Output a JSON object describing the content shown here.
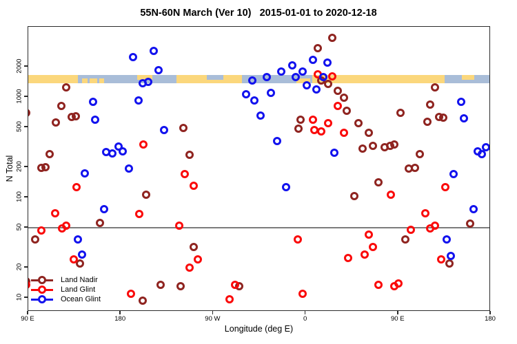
{
  "chart_data": {
    "type": "scatter",
    "title": "55N-60N March (Ver 10)   2015-01-01 to 2020-12-18",
    "xlabel": "Longitude (deg E)",
    "ylabel": "N Total",
    "x_axis": {
      "range_deg": [
        90,
        540
      ],
      "ticks": [
        {
          "deg": 90,
          "label": "90 E"
        },
        {
          "deg": 180,
          "label": "180"
        },
        {
          "deg": 270,
          "label": "90 W"
        },
        {
          "deg": 360,
          "label": "0"
        },
        {
          "deg": 450,
          "label": "90 E"
        },
        {
          "deg": 540,
          "label": "180"
        }
      ]
    },
    "y_axis": {
      "scale": "log10",
      "range": [
        7.3,
        5000
      ],
      "ticks": [
        2000,
        1000,
        500,
        200,
        100,
        50,
        20,
        10
      ]
    },
    "reference_line_n": 50,
    "surface_band": {
      "n_top": 1660,
      "n_bottom": 1365,
      "ocean_color": "#a9bdd8",
      "land_color": "#fbd77c",
      "land_segments": [
        {
          "from_deg": 90,
          "to_deg": 138,
          "part": "full"
        },
        {
          "from_deg": 142,
          "to_deg": 148,
          "part": "bottom"
        },
        {
          "from_deg": 150,
          "to_deg": 157,
          "part": "bottom"
        },
        {
          "from_deg": 159,
          "to_deg": 164,
          "part": "bottom"
        },
        {
          "from_deg": 196,
          "to_deg": 211,
          "part": "top"
        },
        {
          "from_deg": 234,
          "to_deg": 298,
          "part": "full"
        },
        {
          "from_deg": 351,
          "to_deg": 364,
          "part": "bottom"
        },
        {
          "from_deg": 366,
          "to_deg": 495,
          "part": "full"
        },
        {
          "from_deg": 512,
          "to_deg": 524,
          "part": "top"
        }
      ],
      "ocean_notches": [
        {
          "from_deg": 264,
          "to_deg": 280,
          "part": "top"
        }
      ]
    },
    "series": [
      {
        "name": "Land Nadir",
        "color": "#8f2420",
        "points": [
          [
            386,
            3880
          ],
          [
            372,
            3060
          ],
          [
            127,
            1250
          ],
          [
            122,
            815
          ],
          [
            88,
            695
          ],
          [
            132,
            633
          ],
          [
            136,
            643
          ],
          [
            117,
            558
          ],
          [
            111,
            270
          ],
          [
            103,
            197
          ],
          [
            107,
            200
          ],
          [
            241,
            492
          ],
          [
            247,
            266
          ],
          [
            355,
            594
          ],
          [
            353,
            484
          ],
          [
            375,
            1460
          ],
          [
            382,
            1350
          ],
          [
            391,
            1150
          ],
          [
            397,
            985
          ],
          [
            400,
            730
          ],
          [
            411,
            550
          ],
          [
            421,
            440
          ],
          [
            425,
            327
          ],
          [
            415,
            306
          ],
          [
            437,
            316
          ],
          [
            442,
            327
          ],
          [
            446,
            337
          ],
          [
            452,
            695
          ],
          [
            486,
            1250
          ],
          [
            481,
            840
          ],
          [
            478,
            566
          ],
          [
            490,
            633
          ],
          [
            494,
            624
          ],
          [
            471,
            270
          ],
          [
            460,
            194
          ],
          [
            466,
            197
          ],
          [
            205,
            107
          ],
          [
            160,
            56
          ],
          [
            97,
            38
          ],
          [
            140,
            22
          ],
          [
            201,
            9.4
          ],
          [
            219,
            13.5
          ],
          [
            251,
            32
          ],
          [
            295,
            13
          ],
          [
            431,
            142
          ],
          [
            407,
            104
          ],
          [
            520,
            55
          ],
          [
            457,
            38
          ],
          [
            500,
            22
          ],
          [
            238,
            13
          ],
          [
            88,
            14.5
          ]
        ]
      },
      {
        "name": "Land Glint",
        "color": "#fa0a0a",
        "points": [
          [
            202,
            337
          ],
          [
            372,
            1680
          ],
          [
            386,
            1600
          ],
          [
            367,
            594
          ],
          [
            368,
            469
          ],
          [
            375,
            455
          ],
          [
            382,
            550
          ],
          [
            391,
            815
          ],
          [
            397,
            440
          ],
          [
            137,
            126
          ],
          [
            116,
            70
          ],
          [
            198,
            69
          ],
          [
            103,
            47
          ],
          [
            123,
            49
          ],
          [
            127,
            52
          ],
          [
            134,
            24
          ],
          [
            190,
            11
          ],
          [
            88,
            13.5
          ],
          [
            242,
            171
          ],
          [
            251,
            131
          ],
          [
            237,
            52
          ],
          [
            352,
            38
          ],
          [
            255,
            24
          ],
          [
            247,
            20
          ],
          [
            291,
            13.5
          ],
          [
            286,
            9.7
          ],
          [
            357,
            11
          ],
          [
            496,
            127
          ],
          [
            443,
            106
          ],
          [
            476,
            70
          ],
          [
            462,
            48
          ],
          [
            481,
            49
          ],
          [
            486,
            52
          ],
          [
            421,
            43
          ],
          [
            425,
            32
          ],
          [
            417,
            27
          ],
          [
            401,
            25
          ],
          [
            492,
            24
          ],
          [
            431,
            13.5
          ],
          [
            446,
            13
          ],
          [
            450,
            14
          ]
        ]
      },
      {
        "name": "Ocean Glint",
        "color": "#1212ee",
        "points": [
          [
            212,
            2880
          ],
          [
            192,
            2500
          ],
          [
            217,
            1850
          ],
          [
            201,
            1370
          ],
          [
            207,
            1420
          ],
          [
            153,
            895
          ],
          [
            197,
            925
          ],
          [
            155,
            594
          ],
          [
            222,
            469
          ],
          [
            178,
            321
          ],
          [
            182,
            288
          ],
          [
            166,
            283
          ],
          [
            172,
            274
          ],
          [
            188,
            194
          ],
          [
            145,
            173
          ],
          [
            367,
            2340
          ],
          [
            381,
            2200
          ],
          [
            347,
            2070
          ],
          [
            357,
            1790
          ],
          [
            336,
            1790
          ],
          [
            322,
            1580
          ],
          [
            308,
            1460
          ],
          [
            350,
            1580
          ],
          [
            377,
            1580
          ],
          [
            361,
            1310
          ],
          [
            370,
            1190
          ],
          [
            302,
            1060
          ],
          [
            326,
            1100
          ],
          [
            310,
            925
          ],
          [
            316,
            653
          ],
          [
            332,
            365
          ],
          [
            341,
            126
          ],
          [
            164,
            77
          ],
          [
            138,
            38
          ],
          [
            142,
            27
          ],
          [
            388,
            280
          ],
          [
            511,
            895
          ],
          [
            514,
            614
          ],
          [
            527,
            288
          ],
          [
            531,
            270
          ],
          [
            535,
            316
          ],
          [
            504,
            171
          ],
          [
            523,
            77
          ],
          [
            497,
            38
          ],
          [
            501,
            26
          ]
        ]
      }
    ],
    "legend": {
      "position": "bottom-left"
    }
  },
  "style": {
    "axis_color": "#2a2a2a",
    "reference_line_color": "#7c7c7c",
    "background": "#ffffff"
  }
}
